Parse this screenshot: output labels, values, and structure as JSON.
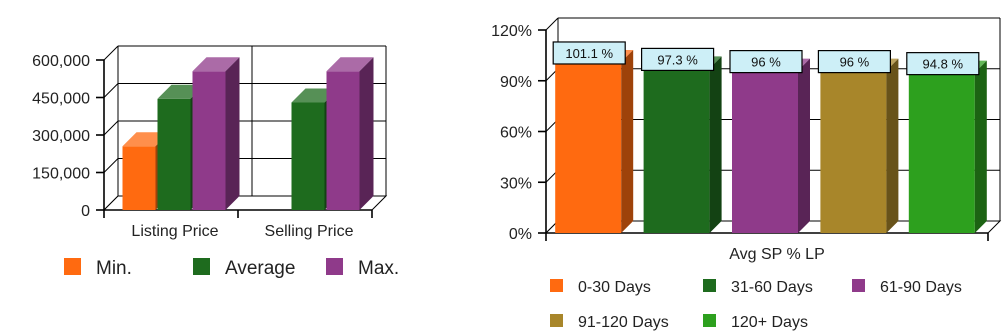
{
  "chart_data": [
    {
      "type": "bar",
      "categories": [
        "Listing Price",
        "Selling Price"
      ],
      "series": [
        {
          "name": "Min.",
          "values": [
            255000,
            null
          ],
          "color": "#ff6a10"
        },
        {
          "name": "Average",
          "values": [
            445000,
            430000
          ],
          "color": "#1e6b1e"
        },
        {
          "name": "Max.",
          "values": [
            555000,
            555000
          ],
          "color": "#8f3a8a"
        }
      ],
      "ylim": [
        0,
        600000
      ],
      "yticks": [
        0,
        150000,
        300000,
        450000,
        600000
      ],
      "ytick_labels": [
        "0",
        "150,000",
        "300,000",
        "450,000",
        "600,000"
      ],
      "legend_placement": "bottom",
      "grid": true
    },
    {
      "type": "bar",
      "xlabel": "Avg SP % LP",
      "categories": [
        "0-30 Days",
        "31-60 Days",
        "61-90 Days",
        "91-120 Days",
        "120+ Days"
      ],
      "values": [
        101.1,
        97.3,
        96,
        96,
        94.8
      ],
      "data_labels": [
        "101.1 %",
        "97.3 %",
        "96 %",
        "96 %",
        "94.8 %"
      ],
      "colors": [
        "#ff6a10",
        "#1e6b1e",
        "#8f3a8a",
        "#a8862a",
        "#2da01e"
      ],
      "ylim": [
        0,
        120
      ],
      "yticks": [
        0,
        30,
        60,
        90,
        120
      ],
      "ytick_labels": [
        "0%",
        "30%",
        "60%",
        "90%",
        "120%"
      ],
      "legend_placement": "bottom",
      "grid": true
    }
  ]
}
